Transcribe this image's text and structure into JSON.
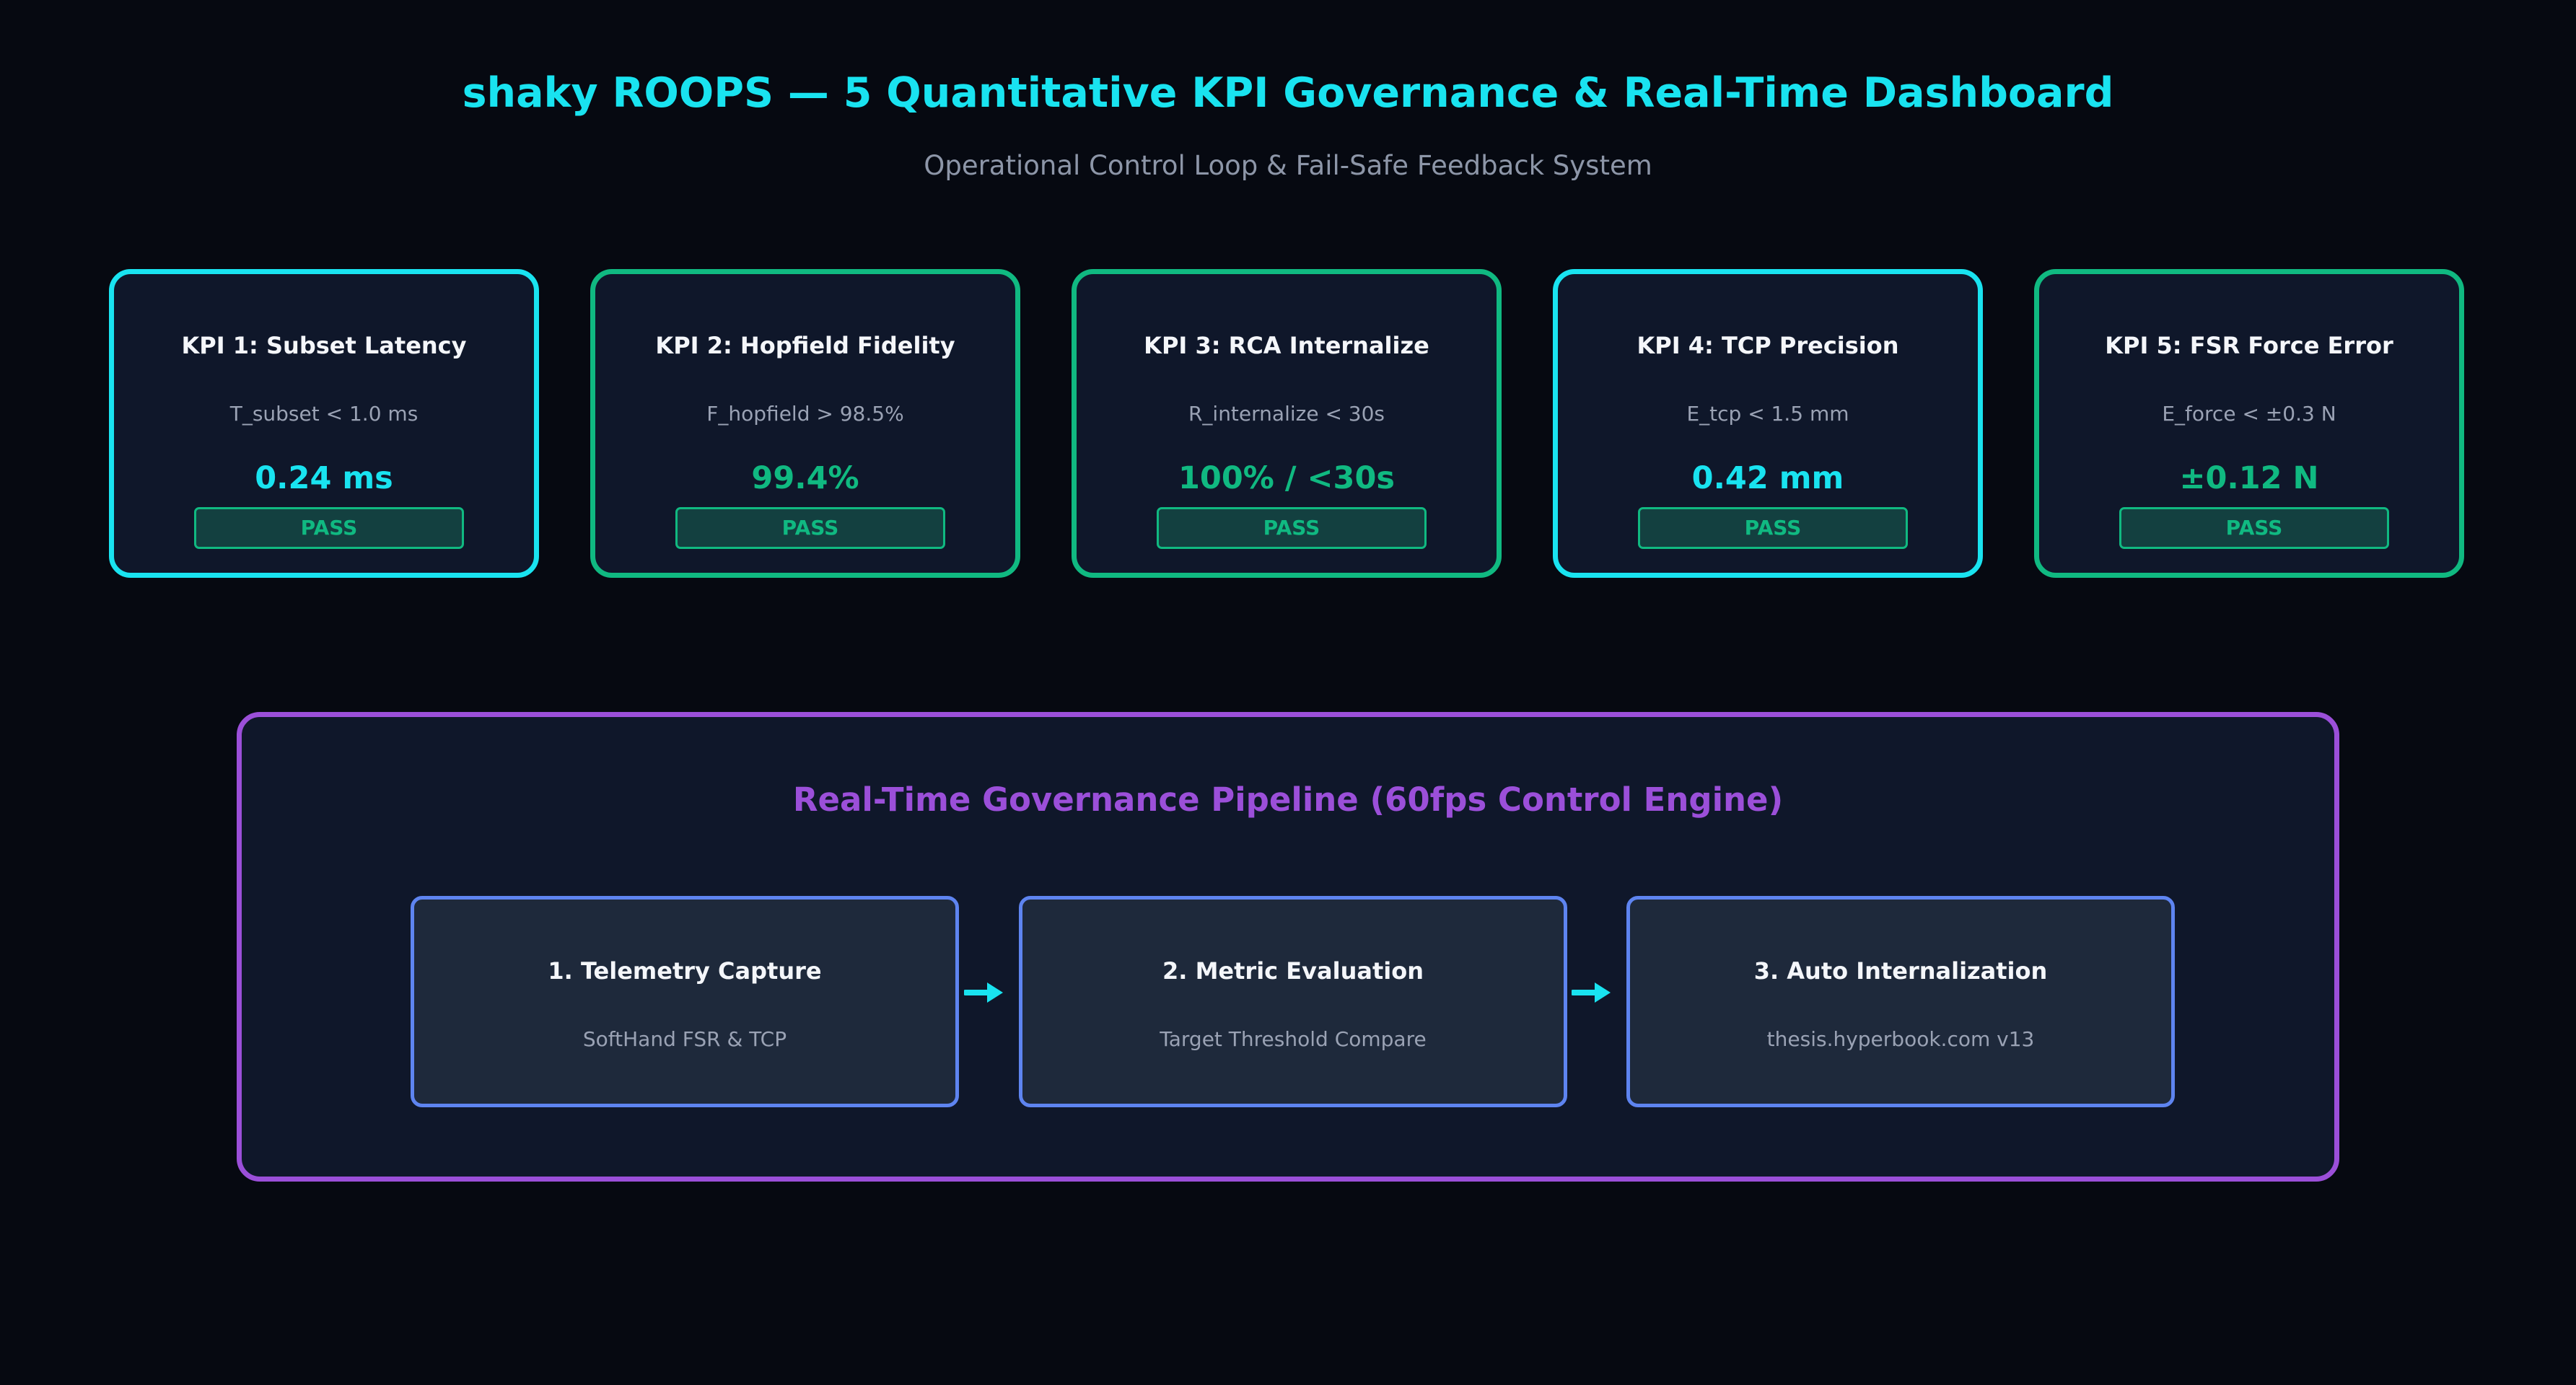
{
  "header": {
    "title": "shaky ROOPS — 5 Quantitative KPI Governance & Real-Time Dashboard",
    "subtitle": "Operational Control Loop & Fail-Safe Feedback System"
  },
  "colors": {
    "background": "#060911",
    "accent_cyan": "#19e3f0",
    "accent_green": "#10b981",
    "accent_purple": "#9b4fd9",
    "stage_border": "#5e84f0"
  },
  "kpis": [
    {
      "title": "KPI 1: Subset Latency",
      "target": "T_subset < 1.0 ms",
      "value": "0.24 ms",
      "status": "PASS",
      "accent": "#19e3f0"
    },
    {
      "title": "KPI 2: Hopfield Fidelity",
      "target": "F_hopfield > 98.5%",
      "value": "99.4%",
      "status": "PASS",
      "accent": "#10b981"
    },
    {
      "title": "KPI 3: RCA Internalize",
      "target": "R_internalize < 30s",
      "value": "100% / <30s",
      "status": "PASS",
      "accent": "#10b981"
    },
    {
      "title": "KPI 4: TCP Precision",
      "target": "E_tcp < 1.5 mm",
      "value": "0.42 mm",
      "status": "PASS",
      "accent": "#19e3f0"
    },
    {
      "title": "KPI 5: FSR Force Error",
      "target": "E_force < ±0.3 N",
      "value": "±0.12 N",
      "status": "PASS",
      "accent": "#10b981"
    }
  ],
  "pipeline": {
    "title": "Real-Time Governance Pipeline (60fps Control Engine)",
    "stages": [
      {
        "title": "1. Telemetry Capture",
        "desc": "SoftHand FSR & TCP"
      },
      {
        "title": "2. Metric Evaluation",
        "desc": "Target Threshold Compare"
      },
      {
        "title": "3. Auto Internalization",
        "desc": "thesis.hyperbook.com v13"
      }
    ],
    "arrow_icon": "arrow-right-icon"
  }
}
